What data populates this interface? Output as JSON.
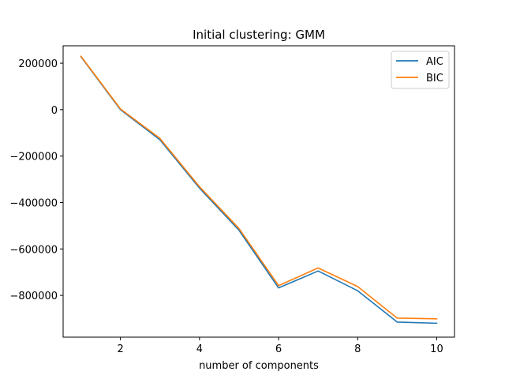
{
  "chart_data": {
    "type": "line",
    "title": "Initial clustering: GMM",
    "xlabel": "number of components",
    "ylabel": "",
    "x": [
      1,
      2,
      3,
      4,
      5,
      6,
      7,
      8,
      9,
      10
    ],
    "series": [
      {
        "name": "AIC",
        "color": "#1f77b4",
        "values": [
          228000,
          0,
          -130000,
          -338000,
          -520000,
          -768000,
          -695000,
          -780000,
          -915000,
          -920000
        ]
      },
      {
        "name": "BIC",
        "color": "#ff7f0e",
        "values": [
          230000,
          3000,
          -124000,
          -332000,
          -512000,
          -758000,
          -682000,
          -762000,
          -898000,
          -901000
        ]
      }
    ],
    "xlim": [
      0.55,
      10.45
    ],
    "ylim": [
      -980000,
      275000
    ],
    "xticks": [
      2,
      4,
      6,
      8,
      10
    ],
    "xtick_labels": [
      "2",
      "4",
      "6",
      "8",
      "10"
    ],
    "yticks": [
      200000,
      0,
      -200000,
      -400000,
      -600000,
      -800000
    ],
    "ytick_labels": [
      "200000",
      "0",
      "−200000",
      "−400000",
      "−600000",
      "−800000"
    ],
    "legend_position": "top-right",
    "grid": false
  }
}
